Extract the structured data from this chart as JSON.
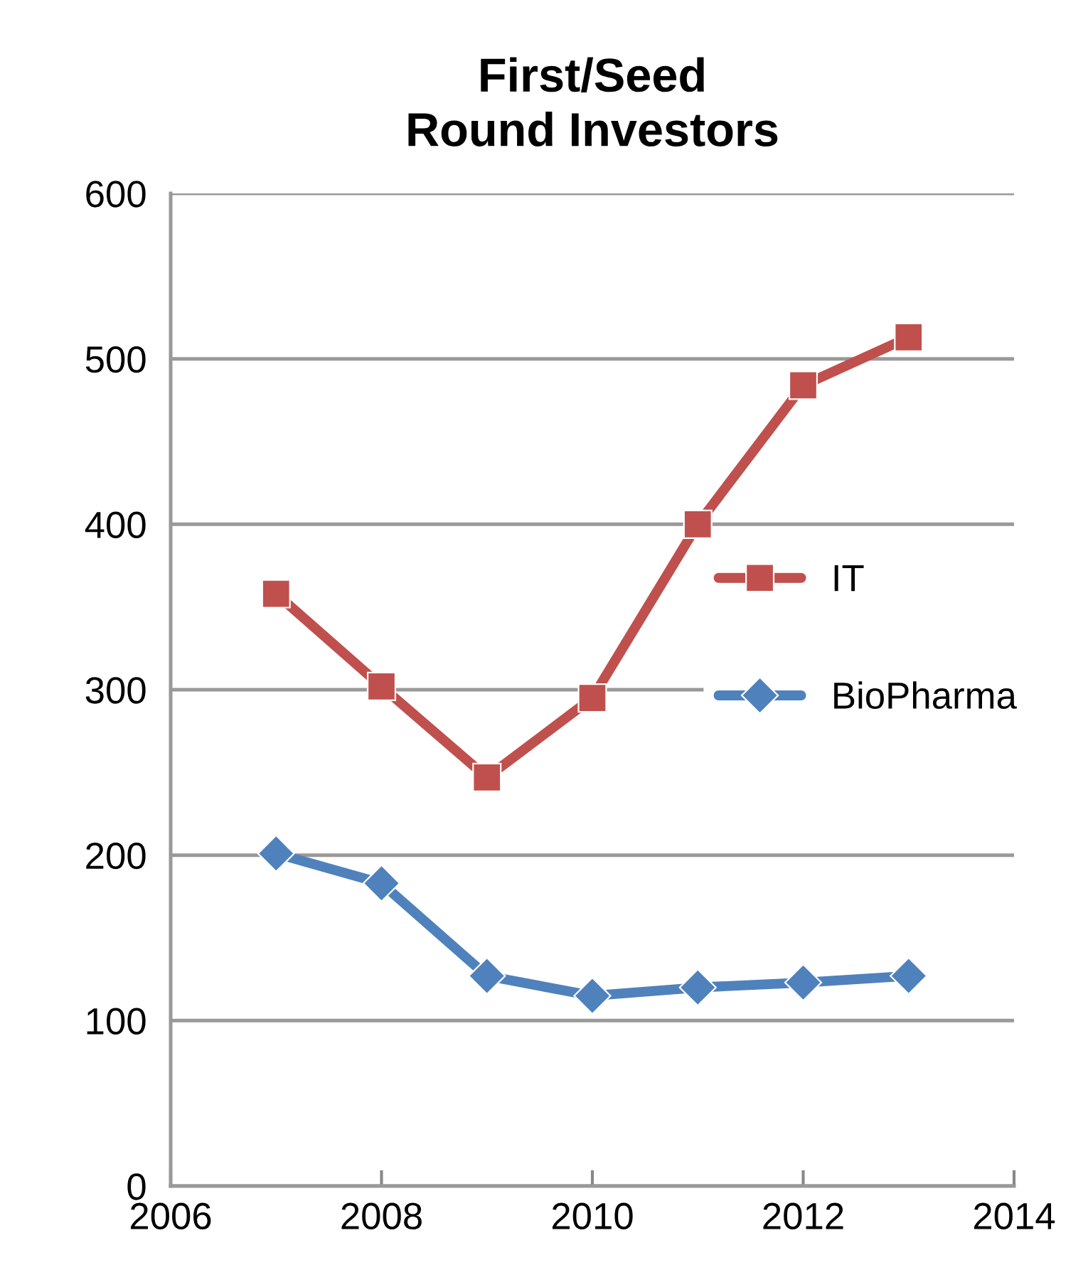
{
  "chart_data": {
    "type": "line",
    "title": "First/Seed\nRound Investors",
    "x": [
      2007,
      2008,
      2009,
      2010,
      2011,
      2012,
      2013
    ],
    "series": [
      {
        "name": "IT",
        "color": "#c0504d",
        "marker": "square",
        "values": [
          358,
          302,
          247,
          295,
          400,
          484,
          513
        ]
      },
      {
        "name": "BioPharma",
        "color": "#4f81bd",
        "marker": "diamond",
        "values": [
          201,
          183,
          127,
          115,
          120,
          123,
          127
        ]
      }
    ],
    "xlim": [
      2006,
      2014
    ],
    "xticks": [
      2006,
      2008,
      2010,
      2012,
      2014
    ],
    "ylim": [
      0,
      600
    ],
    "yticks": [
      0,
      100,
      200,
      300,
      400,
      500,
      600
    ],
    "grid": "y",
    "legend": "center right",
    "line_style": "solid"
  }
}
